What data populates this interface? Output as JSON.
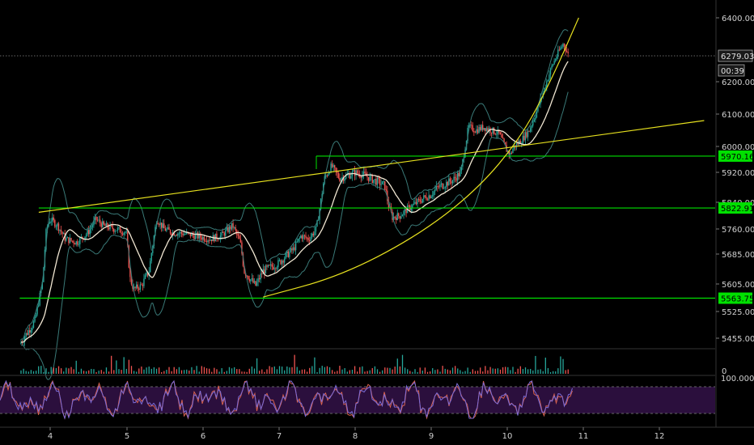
{
  "chart_data": {
    "type": "candlestick",
    "colors": {
      "background": "#000000",
      "up": "#26a69a",
      "down": "#ef5350",
      "ma": "#f0e6d2",
      "bands": "#3a7a78",
      "trend": "#e6e01e",
      "level": "#00e000",
      "rsi_fill": "#2b0f3d",
      "rsi_line": "#7b6bd6"
    },
    "y_ticks": [
      "6400.00",
      "6200.00",
      "6100.00",
      "6000.00",
      "5920.00",
      "5840.00",
      "5760.00",
      "5685.00",
      "5605.00",
      "5525.00",
      "5455.00"
    ],
    "x_ticks": [
      "4",
      "5",
      "6",
      "7",
      "8",
      "9",
      "10",
      "11",
      "12"
    ],
    "last_price": "6279.03",
    "countdown": "00:39",
    "levels": [
      {
        "label": "5970.16",
        "value": 5970.16
      },
      {
        "label": "5822.91",
        "value": 5822.91
      },
      {
        "label": "5563.75",
        "value": 5563.75
      }
    ],
    "rsi_label": "100.0000",
    "volume_label": "0",
    "rsi_band": [
      20,
      80
    ],
    "x_range": [
      3.6,
      12.8
    ],
    "y_range": [
      5420,
      6420
    ],
    "price_path": [
      [
        3.6,
        5440
      ],
      [
        3.8,
        5500
      ],
      [
        3.9,
        5610
      ],
      [
        3.95,
        5760
      ],
      [
        4.0,
        5790
      ],
      [
        4.1,
        5770
      ],
      [
        4.2,
        5730
      ],
      [
        4.35,
        5720
      ],
      [
        4.5,
        5750
      ],
      [
        4.6,
        5790
      ],
      [
        4.7,
        5770
      ],
      [
        4.85,
        5760
      ],
      [
        5.0,
        5750
      ],
      [
        5.05,
        5620
      ],
      [
        5.1,
        5590
      ],
      [
        5.2,
        5600
      ],
      [
        5.3,
        5640
      ],
      [
        5.4,
        5790
      ],
      [
        5.5,
        5760
      ],
      [
        5.6,
        5750
      ],
      [
        5.8,
        5745
      ],
      [
        5.9,
        5740
      ],
      [
        6.0,
        5735
      ],
      [
        6.1,
        5730
      ],
      [
        6.25,
        5740
      ],
      [
        6.4,
        5770
      ],
      [
        6.5,
        5720
      ],
      [
        6.55,
        5640
      ],
      [
        6.7,
        5600
      ],
      [
        6.8,
        5640
      ],
      [
        6.9,
        5650
      ],
      [
        7.0,
        5660
      ],
      [
        7.1,
        5680
      ],
      [
        7.2,
        5700
      ],
      [
        7.3,
        5740
      ],
      [
        7.4,
        5730
      ],
      [
        7.5,
        5760
      ],
      [
        7.6,
        5900
      ],
      [
        7.7,
        5940
      ],
      [
        7.8,
        5905
      ],
      [
        7.9,
        5910
      ],
      [
        8.0,
        5920
      ],
      [
        8.1,
        5915
      ],
      [
        8.2,
        5905
      ],
      [
        8.3,
        5895
      ],
      [
        8.4,
        5885
      ],
      [
        8.45,
        5830
      ],
      [
        8.5,
        5795
      ],
      [
        8.6,
        5800
      ],
      [
        8.7,
        5820
      ],
      [
        8.8,
        5835
      ],
      [
        8.9,
        5850
      ],
      [
        9.0,
        5860
      ],
      [
        9.1,
        5880
      ],
      [
        9.2,
        5890
      ],
      [
        9.3,
        5900
      ],
      [
        9.4,
        5920
      ],
      [
        9.5,
        6060
      ],
      [
        9.6,
        6050
      ],
      [
        9.7,
        6060
      ],
      [
        9.8,
        6050
      ],
      [
        9.9,
        6040
      ],
      [
        10.0,
        5990
      ],
      [
        10.05,
        5975
      ],
      [
        10.1,
        6000
      ],
      [
        10.2,
        6020
      ],
      [
        10.3,
        6050
      ],
      [
        10.4,
        6110
      ],
      [
        10.5,
        6180
      ],
      [
        10.6,
        6250
      ],
      [
        10.7,
        6300
      ],
      [
        10.75,
        6320
      ],
      [
        10.82,
        6279
      ]
    ],
    "trend_lines": [
      {
        "from": [
          3.85,
          5810
        ],
        "to": [
          12.6,
          6080
        ]
      }
    ],
    "curve": {
      "from": 6.8,
      "to": 10.95,
      "points": [
        [
          6.8,
          5567
        ],
        [
          7.8,
          5625
        ],
        [
          8.8,
          5735
        ],
        [
          9.6,
          5870
        ],
        [
          10.2,
          6030
        ],
        [
          10.6,
          6210
        ],
        [
          10.95,
          6400
        ]
      ]
    },
    "box_lines": [
      {
        "y": 5822.91,
        "from": 3.85,
        "to": 12.8
      },
      {
        "y": 5970.16,
        "from": 7.5,
        "to": 12.8
      },
      {
        "y": 5563.75,
        "from": 3.6,
        "to": 12.8
      }
    ]
  }
}
